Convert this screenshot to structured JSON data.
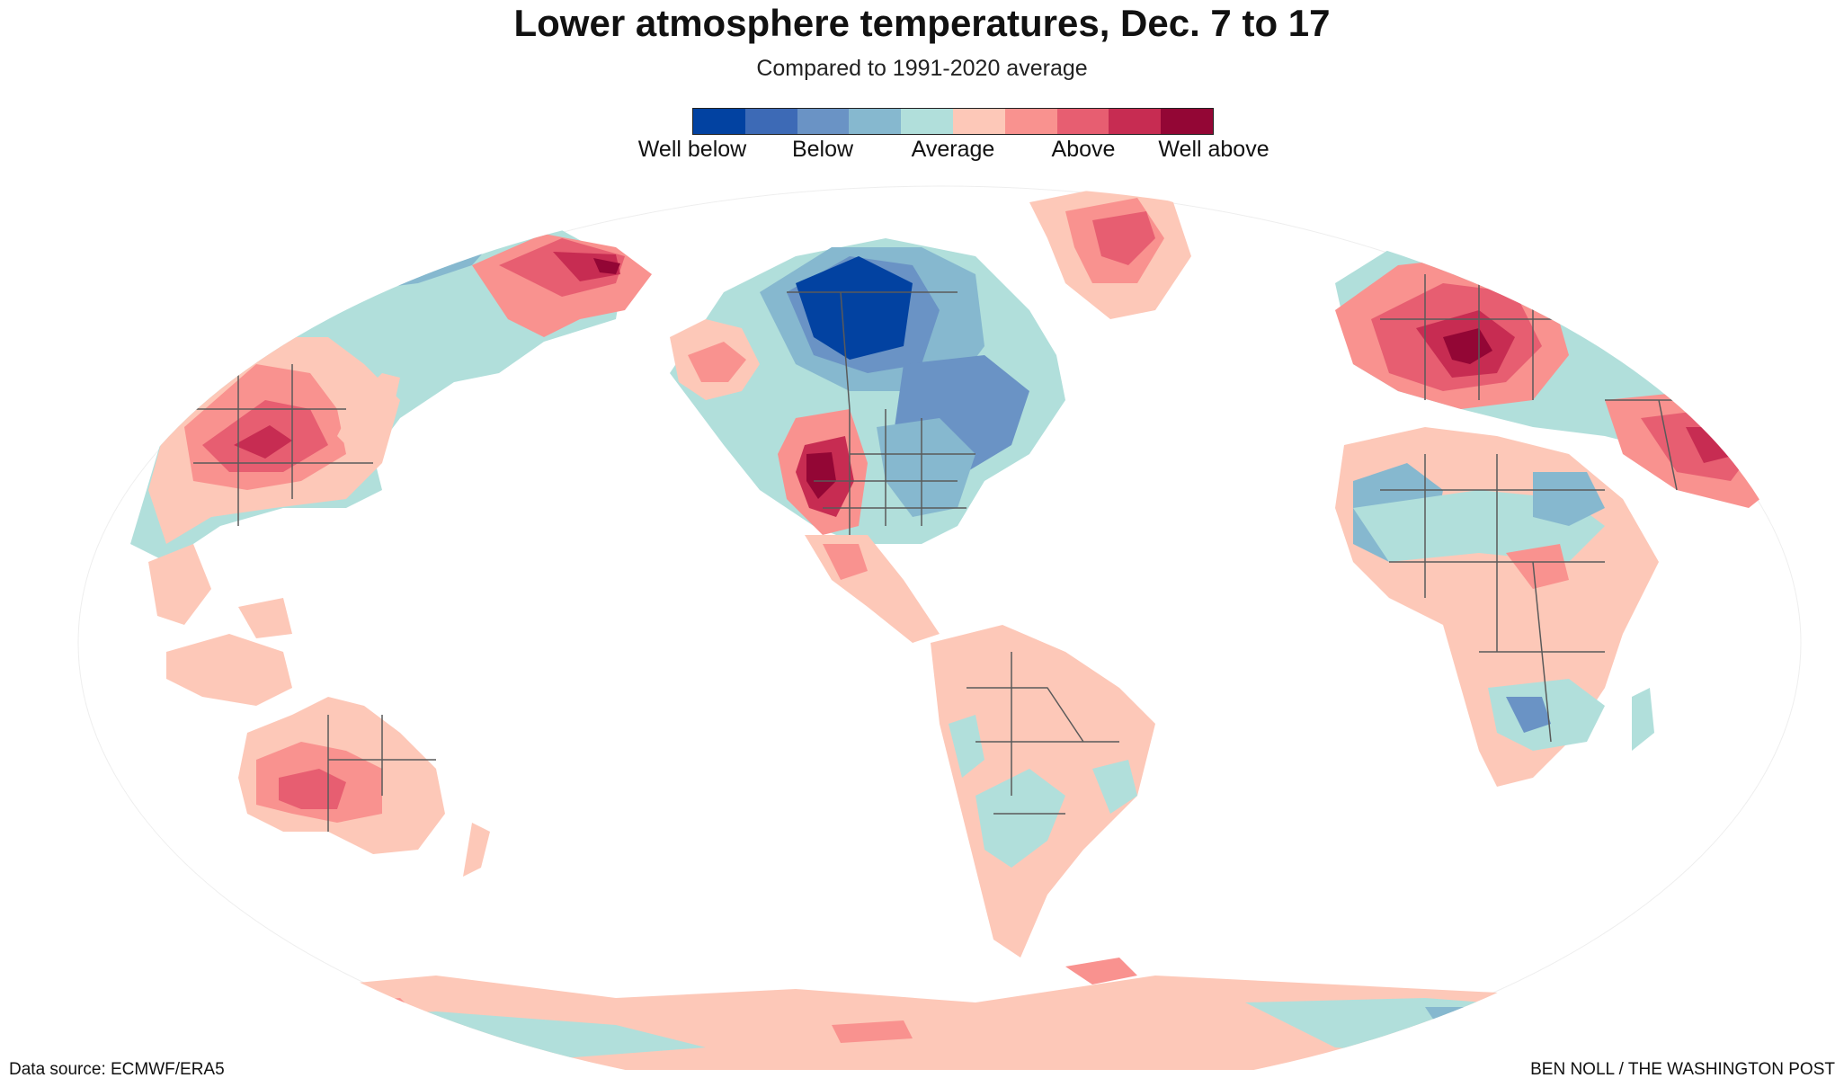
{
  "header": {
    "title": "Lower atmosphere temperatures, Dec. 7 to 17",
    "subtitle": "Compared to 1991-2020 average"
  },
  "legend": {
    "swatches": [
      "#0242a1",
      "#3d6ab6",
      "#6a93c5",
      "#86b8cf",
      "#b1dfdb",
      "#fdc8b8",
      "#f9928f",
      "#e75e71",
      "#c72c52",
      "#930635"
    ],
    "labels": [
      "Well below",
      "Below",
      "Average",
      "Above",
      "Well above"
    ]
  },
  "palette": {
    "well_below": "#0242a1",
    "below": "#6a93c5",
    "slightly_below": "#86b8cf",
    "average": "#b1dfdb",
    "slightly_above": "#fdc8b8",
    "above": "#f9928f",
    "well_above_1": "#e75e71",
    "well_above_2": "#c72c52",
    "extreme": "#930635",
    "border": "#5a5a5a"
  },
  "footer": {
    "source": "Data source: ECMWF/ERA5",
    "credit": "BEN NOLL / THE WASHINGTON POST"
  }
}
